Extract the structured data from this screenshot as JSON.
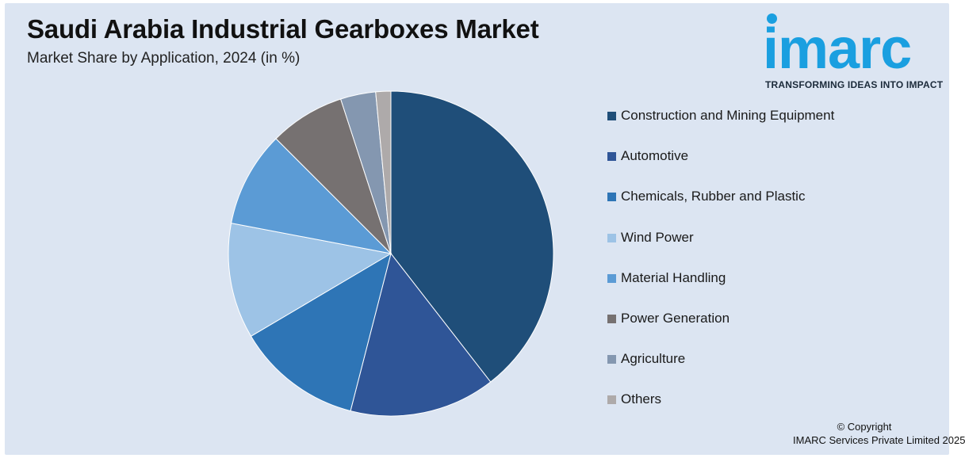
{
  "header": {
    "title": "Saudi Arabia Industrial Gearboxes Market",
    "subtitle": "Market Share by Application, 2024 (in %)"
  },
  "logo": {
    "wordmark": "imarc",
    "tagline": "TRANSFORMING IDEAS INTO IMPACT",
    "color": "#1a9fe0"
  },
  "chart_data": {
    "type": "pie",
    "title": "Saudi Arabia Industrial Gearboxes Market",
    "subtitle": "Market Share by Application, 2024 (in %)",
    "legend_position": "right",
    "start_angle_deg": 0,
    "direction": "clockwise",
    "categories": [
      "Construction and Mining Equipment",
      "Automotive",
      "Chemicals, Rubber and Plastic",
      "Wind Power",
      "Material Handling",
      "Power Generation",
      "Agriculture",
      "Others"
    ],
    "values": [
      39.5,
      14.5,
      12.5,
      11.5,
      9.5,
      7.5,
      3.5,
      1.5
    ],
    "colors": [
      "#1f4e79",
      "#2f5597",
      "#2e75b6",
      "#9dc3e6",
      "#5b9bd5",
      "#767171",
      "#8497b0",
      "#aeaaaa"
    ]
  },
  "footer": {
    "copyright_line1": "© Copyright",
    "copyright_line2": "IMARC Services Private Limited 2025"
  }
}
